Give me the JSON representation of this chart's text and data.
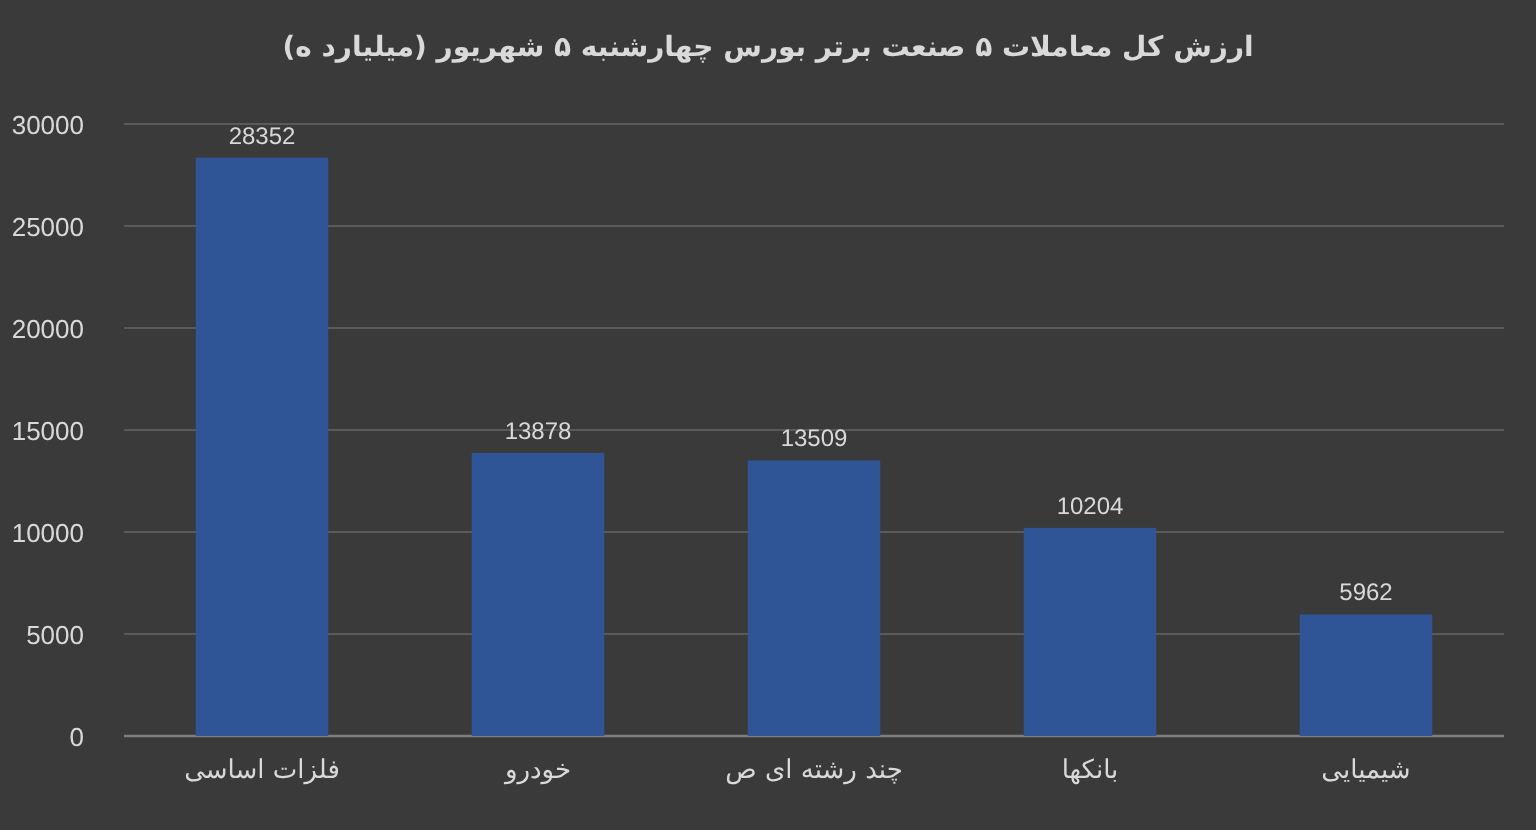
{
  "chart_data": {
    "type": "bar",
    "title": "ارزش کل معاملات ۵ صنعت برتر بورس چهارشنبه ۵ شهریور (میلیارد ه)",
    "categories": [
      "فلزات اساسی",
      "خودرو",
      "چند رشته ای ص",
      "بانکها",
      "شیمیایی"
    ],
    "values": [
      28352,
      13878,
      13509,
      10204,
      5962
    ],
    "color": "#2f5597",
    "ylim": [
      0,
      30000
    ],
    "yticks": [
      0,
      5000,
      10000,
      15000,
      20000,
      25000,
      30000
    ],
    "grid": "y",
    "data_labels": true
  }
}
